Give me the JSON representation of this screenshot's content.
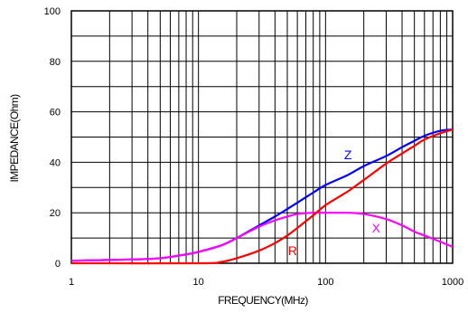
{
  "chart_data": {
    "type": "line",
    "xlabel": "FREQUENCY(MHz)",
    "ylabel": "IMPEDANCE(Ohm)",
    "x_scale": "log",
    "xlim": [
      1,
      1000
    ],
    "ylim": [
      0,
      100
    ],
    "x_ticks": [
      1,
      10,
      100,
      1000
    ],
    "x_tick_labels": [
      "1",
      "10",
      "100",
      "1000"
    ],
    "y_ticks": [
      0,
      20,
      40,
      60,
      80,
      100
    ],
    "y_tick_labels": [
      "0",
      "20",
      "40",
      "60",
      "80",
      "100"
    ],
    "grid": true,
    "series": [
      {
        "name": "Z",
        "color": "#0000ff",
        "x": [
          1,
          3,
          5,
          8,
          10,
          15,
          20,
          30,
          40,
          50,
          60,
          80,
          100,
          150,
          200,
          300,
          400,
          500,
          600,
          800,
          1000
        ],
        "y": [
          1,
          1.5,
          2,
          3.5,
          4.5,
          7,
          10,
          15,
          18.5,
          21.5,
          24,
          28,
          31,
          35,
          38.5,
          42.5,
          46,
          48.5,
          50.5,
          52.5,
          53
        ]
      },
      {
        "name": "R",
        "color": "#ff0000",
        "x": [
          1,
          10,
          15,
          20,
          30,
          40,
          50,
          60,
          80,
          100,
          150,
          200,
          300,
          400,
          500,
          600,
          800,
          1000
        ],
        "y": [
          0,
          0,
          0.5,
          2,
          5,
          8,
          11,
          14,
          19,
          23,
          28.5,
          33,
          39.5,
          43.5,
          46.5,
          49,
          51.5,
          53
        ]
      },
      {
        "name": "X",
        "color": "#ff00ff",
        "x": [
          1,
          3,
          5,
          8,
          10,
          15,
          20,
          30,
          40,
          50,
          60,
          80,
          100,
          150,
          200,
          300,
          400,
          500,
          600,
          800,
          1000
        ],
        "y": [
          1,
          1.5,
          2,
          3.5,
          4.5,
          7,
          10,
          14.5,
          17,
          18.5,
          19.5,
          20,
          20,
          20,
          19.5,
          17.5,
          15,
          12.5,
          11,
          8.5,
          6.5
        ]
      }
    ]
  }
}
